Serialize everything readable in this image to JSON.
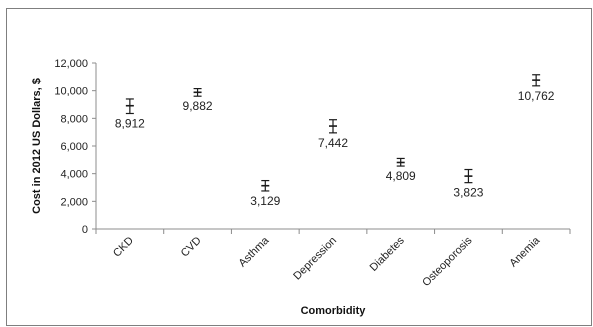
{
  "chart_data": {
    "type": "scatter",
    "xlabel": "Comorbidity",
    "ylabel": "Cost in 2012 US Dollars, $",
    "ylim": [
      0,
      12000
    ],
    "yticks": [
      0,
      2000,
      4000,
      6000,
      8000,
      10000,
      12000
    ],
    "ytick_labels": [
      "0",
      "2,000",
      "4,000",
      "6,000",
      "8,000",
      "10,000",
      "12,000"
    ],
    "grid": false,
    "legend": "none",
    "categories": [
      "CKD",
      "CVD",
      "Asthma",
      "Depression",
      "Diabetes",
      "Osteoporosis",
      "Anemia"
    ],
    "series": [
      {
        "values": [
          8912,
          9882,
          3129,
          7442,
          4809,
          3823,
          10762
        ],
        "error_low": [
          8350,
          9600,
          2750,
          6950,
          4550,
          3350,
          10350
        ],
        "error_high": [
          9400,
          10150,
          3500,
          7900,
          5100,
          4300,
          11150
        ],
        "data_labels": [
          "8,912",
          "9,882",
          "3,129",
          "7,442",
          "4,809",
          "3,823",
          "10,762"
        ]
      }
    ],
    "colors": {
      "marker": "#1a1a1a",
      "axis": "#8c8c8c"
    }
  }
}
